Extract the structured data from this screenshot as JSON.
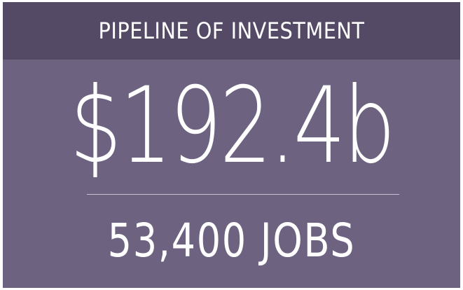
{
  "header": {
    "title": "PIPELINE OF INVESTMENT"
  },
  "stats": {
    "investment": "$192.4b",
    "jobs": "53,400 JOBS"
  }
}
